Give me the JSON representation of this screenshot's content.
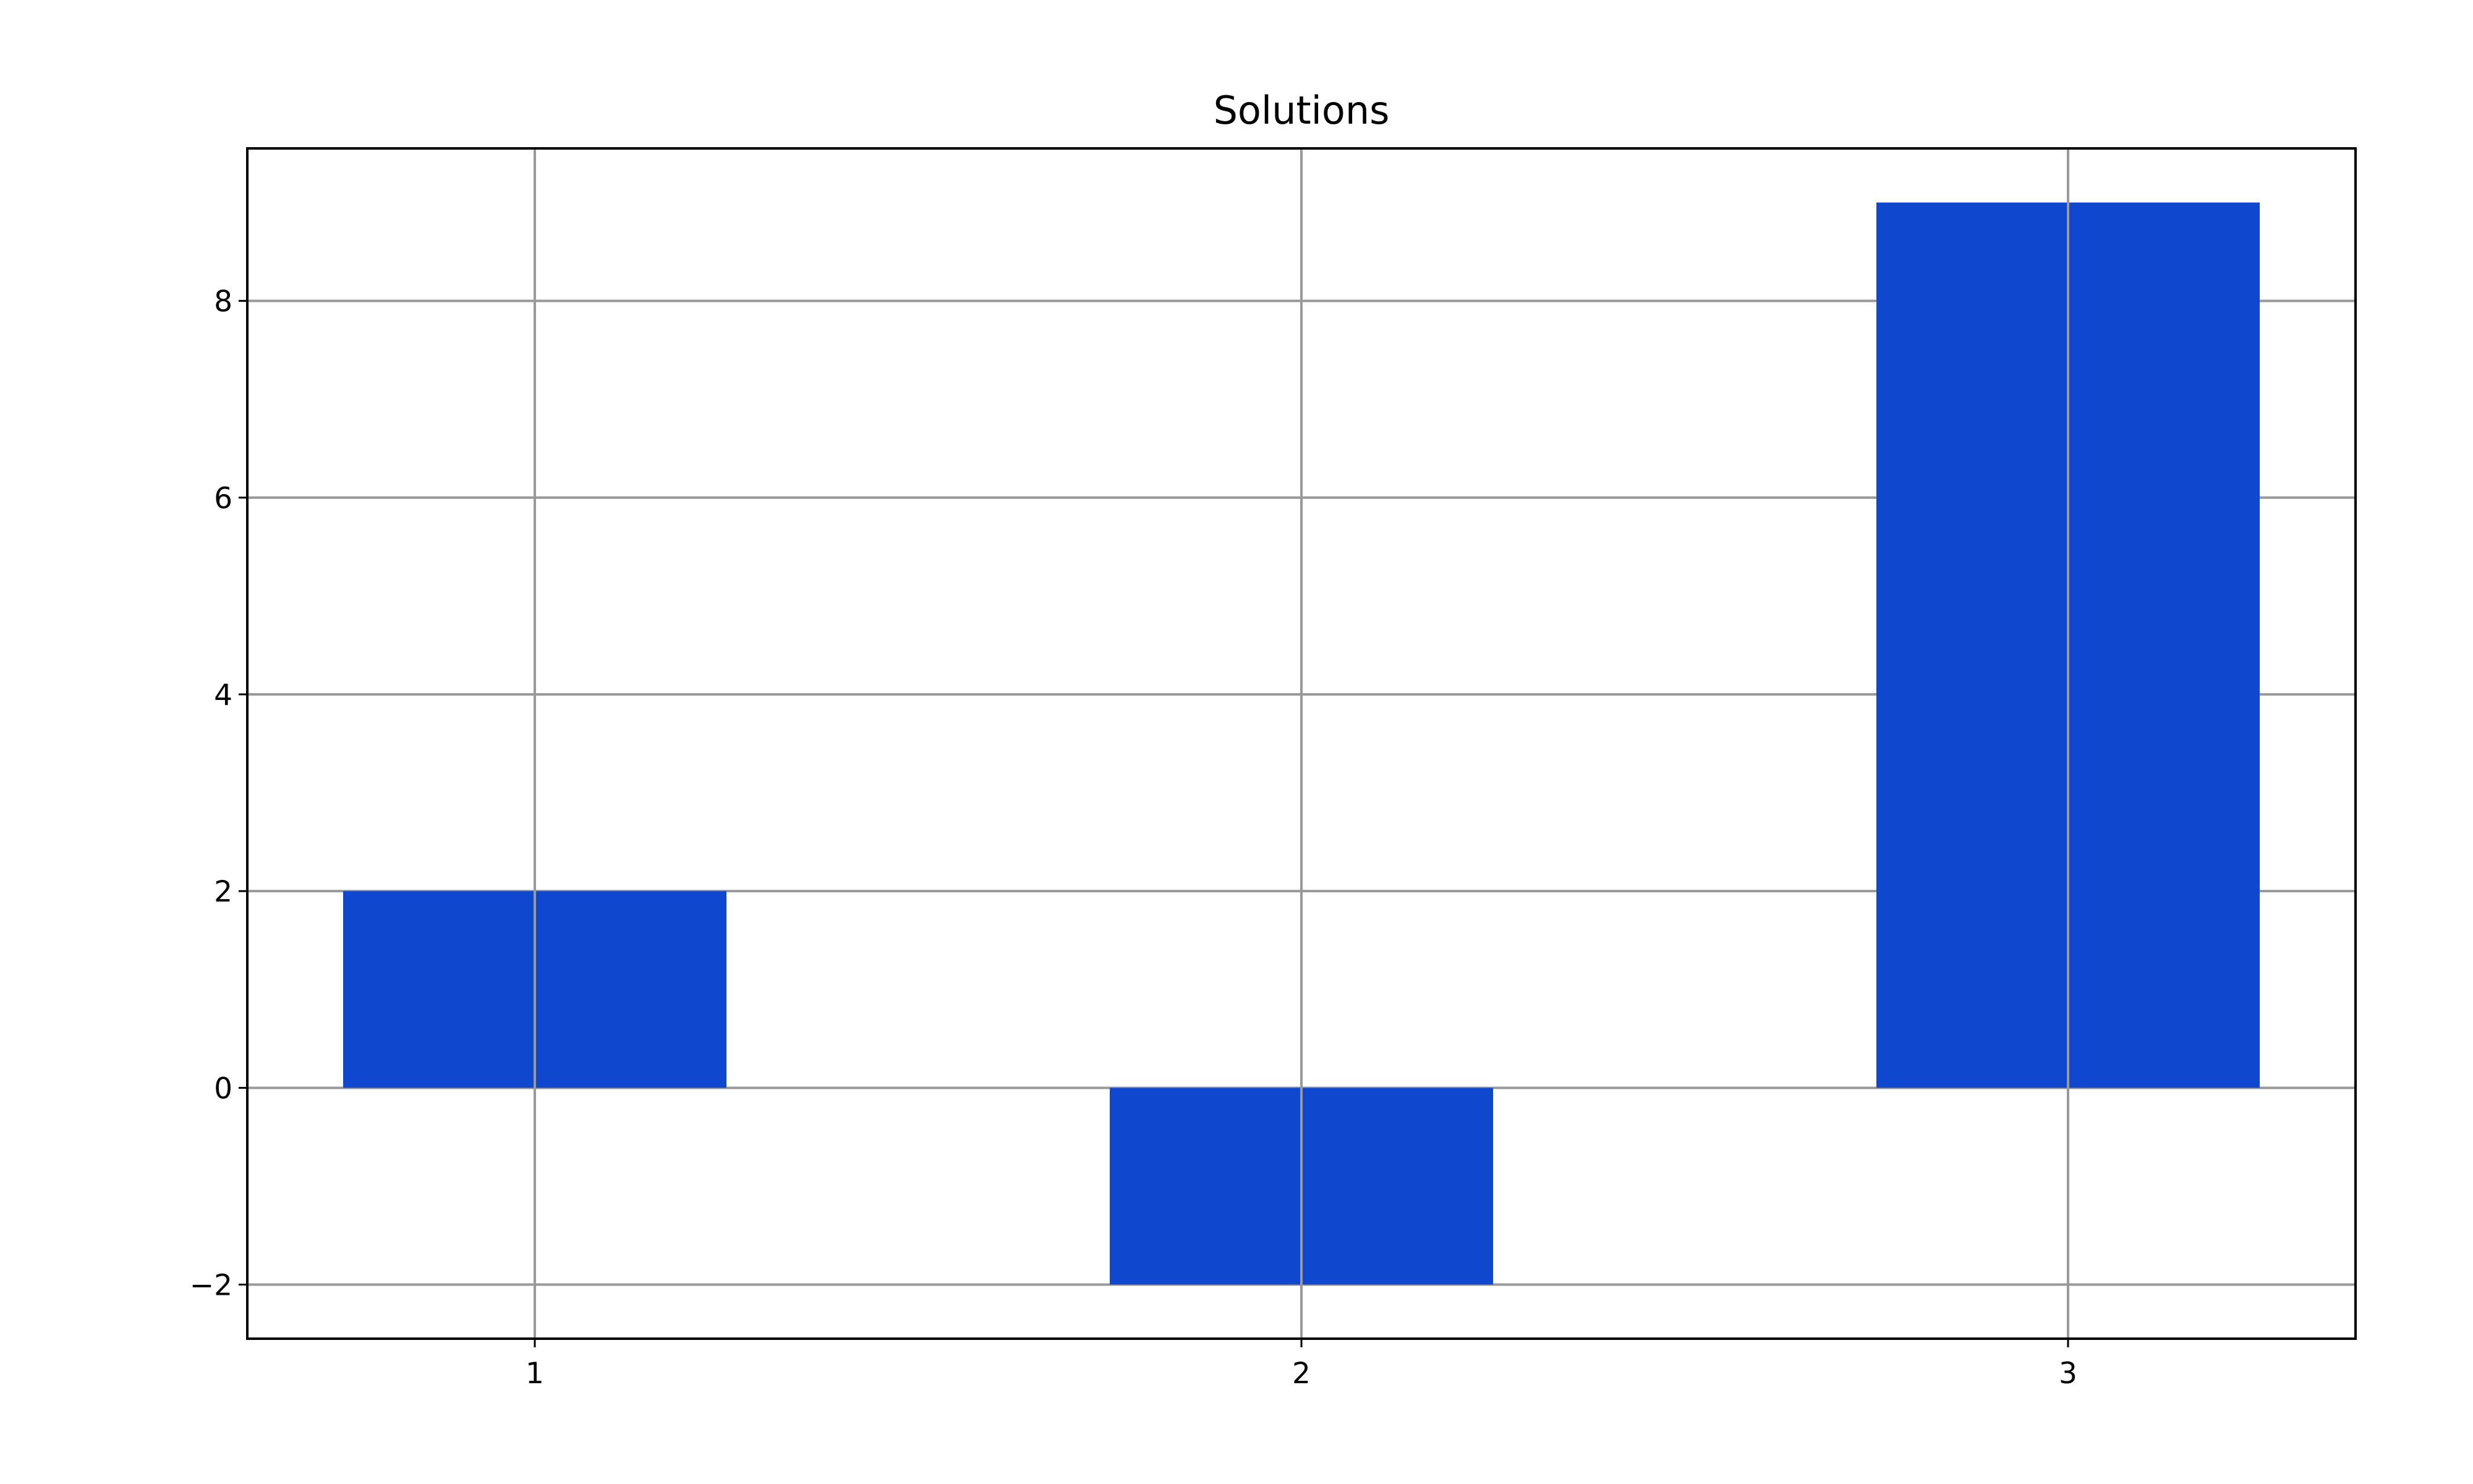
{
  "chart_data": {
    "type": "bar",
    "title": "Solutions",
    "xlabel": "",
    "ylabel": "",
    "categories": [
      "1",
      "2",
      "3"
    ],
    "x": [
      1,
      2,
      3
    ],
    "values": [
      2,
      -2,
      9
    ],
    "bar_color": "#1047cf",
    "grid": true,
    "xlim": [
      0.625,
      3.375
    ],
    "ylim": [
      -2.55,
      9.55
    ],
    "yticks": [
      -2,
      0,
      2,
      4,
      6,
      8
    ],
    "ytick_labels": [
      "−2",
      "0",
      "2",
      "4",
      "6",
      "8"
    ],
    "xticks": [
      1,
      2,
      3
    ],
    "xtick_labels": [
      "1",
      "2",
      "3"
    ]
  }
}
